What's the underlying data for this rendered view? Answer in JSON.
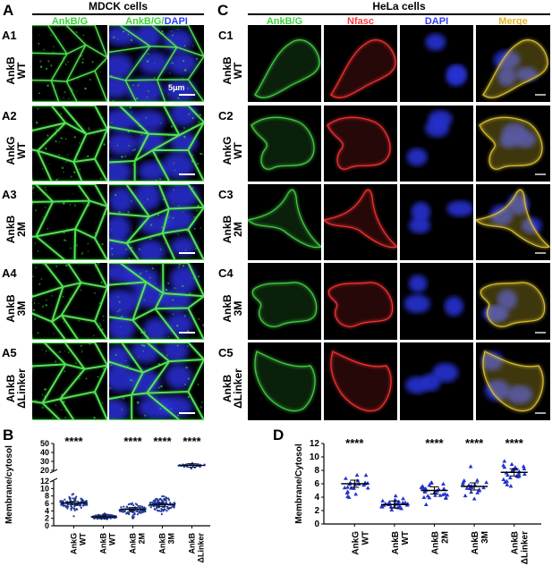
{
  "figure": {
    "panel_a": {
      "letter": "A",
      "title": "MDCK cells",
      "channels": [
        "AnkB/G",
        "AnkB/G/DAPI"
      ],
      "scale_label": "5μm",
      "rows": [
        {
          "id": "A1",
          "label_line1": "AnkB",
          "label_line2": "WT"
        },
        {
          "id": "A2",
          "label_line1": "AnkG",
          "label_line2": "WT"
        },
        {
          "id": "A3",
          "label_line1": "AnkB",
          "label_line2": "2M"
        },
        {
          "id": "A4",
          "label_line1": "AnkB",
          "label_line2": "3M"
        },
        {
          "id": "A5",
          "label_line1": "AnkB",
          "label_line2": "ΔLinker"
        }
      ]
    },
    "panel_c": {
      "letter": "C",
      "title": "HeLa cells",
      "channels": [
        "AnkB/G",
        "Nfasc",
        "DAPI",
        "Merge"
      ],
      "rows": [
        {
          "id": "C1",
          "label_line1": "AnkB",
          "label_line2": "WT"
        },
        {
          "id": "C2",
          "label_line1": "AnkG",
          "label_line2": "WT"
        },
        {
          "id": "C3",
          "label_line1": "AnkB",
          "label_line2": "2M"
        },
        {
          "id": "C4",
          "label_line1": "AnkB",
          "label_line2": "3M"
        },
        {
          "id": "C5",
          "label_line1": "AnkB",
          "label_line2": "ΔLinker"
        }
      ]
    },
    "colors": {
      "green": "#3fd13f",
      "red": "#ff3b3b",
      "blue": "#2f3bff",
      "merge": "#e6b422",
      "dot_b": "#1f3a99",
      "dot_d": "#2233cc"
    }
  },
  "chart_data": [
    {
      "panel": "B",
      "type": "scatter",
      "ylabel": "Membrane/cytosol",
      "categories": [
        {
          "line1": "AnkG",
          "line2": "WT"
        },
        {
          "line1": "AnkB",
          "line2": "WT"
        },
        {
          "line1": "AnkB",
          "line2": "2M"
        },
        {
          "line1": "AnkB",
          "line2": "3M"
        },
        {
          "line1": "AnkB",
          "line2": "ΔLinker"
        }
      ],
      "means": [
        6.1,
        2.4,
        4.4,
        5.7,
        25.5
      ],
      "spreads": [
        1.6,
        0.6,
        1.3,
        1.7,
        2.0
      ],
      "counts": [
        110,
        110,
        100,
        130,
        50
      ],
      "significance": [
        "****",
        "",
        "****",
        "****",
        "****"
      ],
      "lower_axis": {
        "ylim": [
          0,
          12
        ],
        "ticks": [
          "0",
          "2",
          "4",
          "6",
          "8",
          "10",
          "12"
        ]
      },
      "upper_axis": {
        "ylim": [
          20,
          50
        ],
        "ticks": [
          "20",
          "30",
          "40",
          "50"
        ]
      }
    },
    {
      "panel": "D",
      "type": "scatter",
      "ylabel": "Membrane/Cytosol",
      "ylim": [
        0,
        12
      ],
      "ticks": [
        "0",
        "2",
        "4",
        "6",
        "8",
        "10",
        "12"
      ],
      "categories": [
        {
          "line1": "AnkG",
          "line2": "WT"
        },
        {
          "line1": "AnkB",
          "line2": "WT"
        },
        {
          "line1": "AnkB",
          "line2": "2M"
        },
        {
          "line1": "AnkB",
          "line2": "3M"
        },
        {
          "line1": "AnkB",
          "line2": "ΔLinker"
        }
      ],
      "means": [
        6.0,
        2.9,
        5.0,
        5.6,
        7.7
      ],
      "spreads": [
        1.3,
        0.8,
        1.2,
        1.2,
        1.4
      ],
      "counts": [
        22,
        28,
        30,
        20,
        24
      ],
      "significance": [
        "****",
        "",
        "****",
        "****",
        "****"
      ]
    }
  ]
}
